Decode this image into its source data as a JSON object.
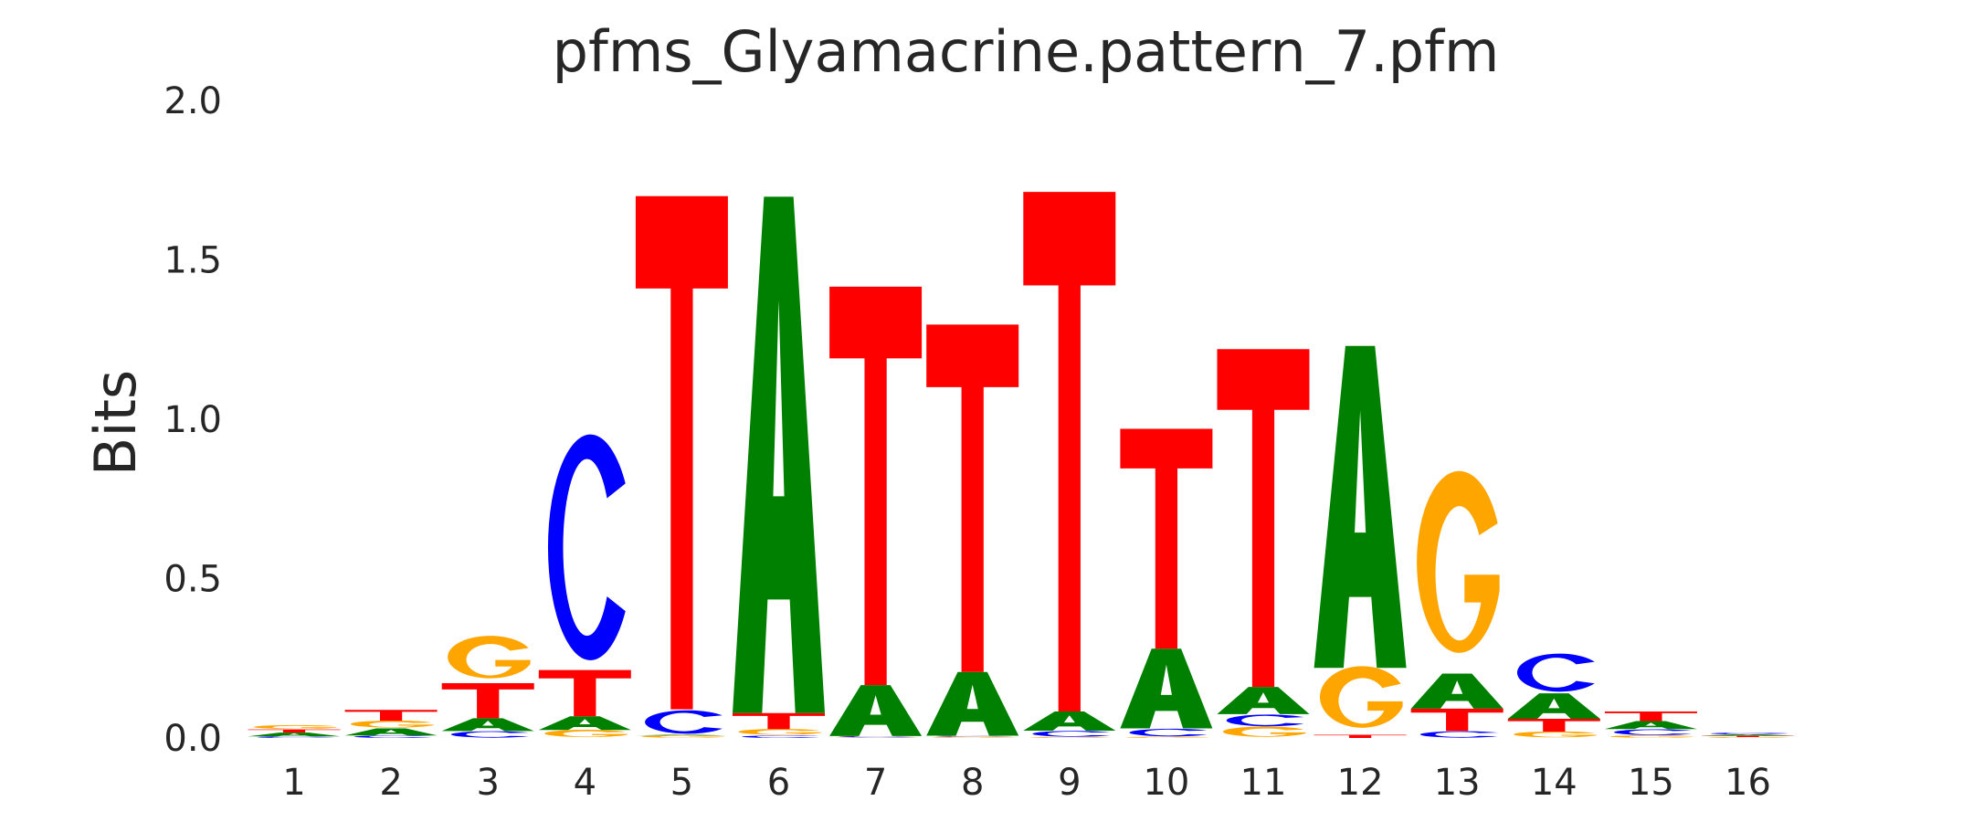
{
  "chart_data": {
    "type": "sequence_logo",
    "title": "pfms_Glyamacrine.pattern_7.pfm",
    "xlabel": "",
    "ylabel": "Bits",
    "ylim": [
      0,
      2.0
    ],
    "yticks": [
      "0.0",
      "0.5",
      "1.0",
      "1.5",
      "2.0"
    ],
    "categories": [
      "1",
      "2",
      "3",
      "4",
      "5",
      "6",
      "7",
      "8",
      "9",
      "10",
      "11",
      "12",
      "13",
      "14",
      "15",
      "16"
    ],
    "grid": false,
    "colors": {
      "A": "#008000",
      "C": "#0000ff",
      "G": "#ffa500",
      "T": "#ff0000"
    },
    "positions": [
      [
        {
          "base": "C",
          "height": 0.005
        },
        {
          "base": "A",
          "height": 0.012
        },
        {
          "base": "T",
          "height": 0.01
        },
        {
          "base": "G",
          "height": 0.013
        }
      ],
      [
        {
          "base": "C",
          "height": 0.008
        },
        {
          "base": "A",
          "height": 0.022
        },
        {
          "base": "G",
          "height": 0.024
        },
        {
          "base": "T",
          "height": 0.034
        }
      ],
      [
        {
          "base": "C",
          "height": 0.022
        },
        {
          "base": "A",
          "height": 0.04
        },
        {
          "base": "T",
          "height": 0.11
        },
        {
          "base": "G",
          "height": 0.145
        }
      ],
      [
        {
          "base": "G",
          "height": 0.025
        },
        {
          "base": "A",
          "height": 0.043
        },
        {
          "base": "T",
          "height": 0.145
        },
        {
          "base": "C",
          "height": 0.77
        }
      ],
      [
        {
          "base": "G",
          "height": 0.008
        },
        {
          "base": "A",
          "height": 0.002
        },
        {
          "base": "C",
          "height": 0.08
        },
        {
          "base": "T",
          "height": 1.61
        }
      ],
      [
        {
          "base": "C",
          "height": 0.008
        },
        {
          "base": "G",
          "height": 0.02
        },
        {
          "base": "T",
          "height": 0.05
        },
        {
          "base": "A",
          "height": 1.62
        }
      ],
      [
        {
          "base": "G",
          "height": 0.002
        },
        {
          "base": "C",
          "height": 0.004
        },
        {
          "base": "A",
          "height": 0.16
        },
        {
          "base": "T",
          "height": 1.25
        }
      ],
      [
        {
          "base": "G",
          "height": 0.004
        },
        {
          "base": "C",
          "height": 0.003
        },
        {
          "base": "A",
          "height": 0.2
        },
        {
          "base": "T",
          "height": 1.09
        }
      ],
      [
        {
          "base": "G",
          "height": 0.003
        },
        {
          "base": "C",
          "height": 0.02
        },
        {
          "base": "A",
          "height": 0.06
        },
        {
          "base": "T",
          "height": 1.63
        }
      ],
      [
        {
          "base": "G",
          "height": 0.004
        },
        {
          "base": "C",
          "height": 0.026
        },
        {
          "base": "A",
          "height": 0.25
        },
        {
          "base": "T",
          "height": 0.69
        }
      ],
      [
        {
          "base": "G",
          "height": 0.035
        },
        {
          "base": "C",
          "height": 0.04
        },
        {
          "base": "A",
          "height": 0.085
        },
        {
          "base": "T",
          "height": 1.06
        }
      ],
      [
        {
          "base": "T",
          "height": 0.01
        },
        {
          "base": "G",
          "height": 0.21
        },
        {
          "base": "A",
          "height": 1.01
        }
      ],
      [
        {
          "base": "C",
          "height": 0.022
        },
        {
          "base": "T",
          "height": 0.07
        },
        {
          "base": "A",
          "height": 0.11
        },
        {
          "base": "G",
          "height": 0.62
        }
      ],
      [
        {
          "base": "G",
          "height": 0.02
        },
        {
          "base": "T",
          "height": 0.04
        },
        {
          "base": "A",
          "height": 0.08
        },
        {
          "base": "C",
          "height": 0.13
        }
      ],
      [
        {
          "base": "G",
          "height": 0.008
        },
        {
          "base": "C",
          "height": 0.02
        },
        {
          "base": "A",
          "height": 0.025
        },
        {
          "base": "T",
          "height": 0.03
        }
      ],
      [
        {
          "base": "G",
          "height": 0.003
        },
        {
          "base": "T",
          "height": 0.004
        },
        {
          "base": "A",
          "height": 0.004
        },
        {
          "base": "C",
          "height": 0.006
        }
      ]
    ]
  }
}
